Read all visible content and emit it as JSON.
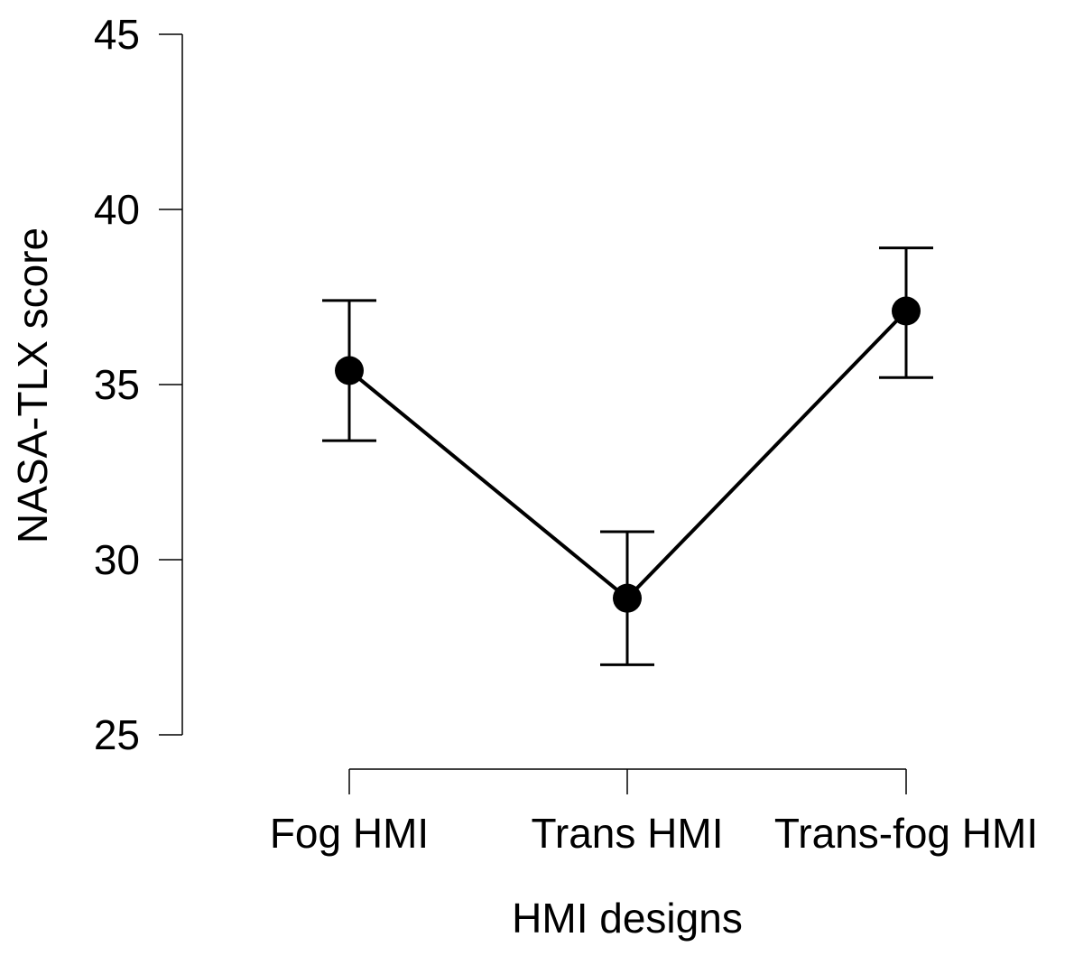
{
  "chart_data": {
    "type": "line",
    "xlabel": "HMI designs",
    "ylabel": "NASA-TLX score",
    "categories": [
      "Fog HMI",
      "Trans HMI",
      "Trans-fog HMI"
    ],
    "series": [
      {
        "values": [
          35.4,
          28.9,
          37.1
        ],
        "error_low": [
          33.4,
          27.0,
          35.2
        ],
        "error_high": [
          37.4,
          30.8,
          38.9
        ]
      }
    ],
    "ylim": [
      25,
      45
    ],
    "yticks": [
      25,
      30,
      35,
      40,
      45
    ],
    "grid": false,
    "colors": {
      "line": "#000000",
      "marker": "#000000",
      "axis": "#000000"
    }
  }
}
